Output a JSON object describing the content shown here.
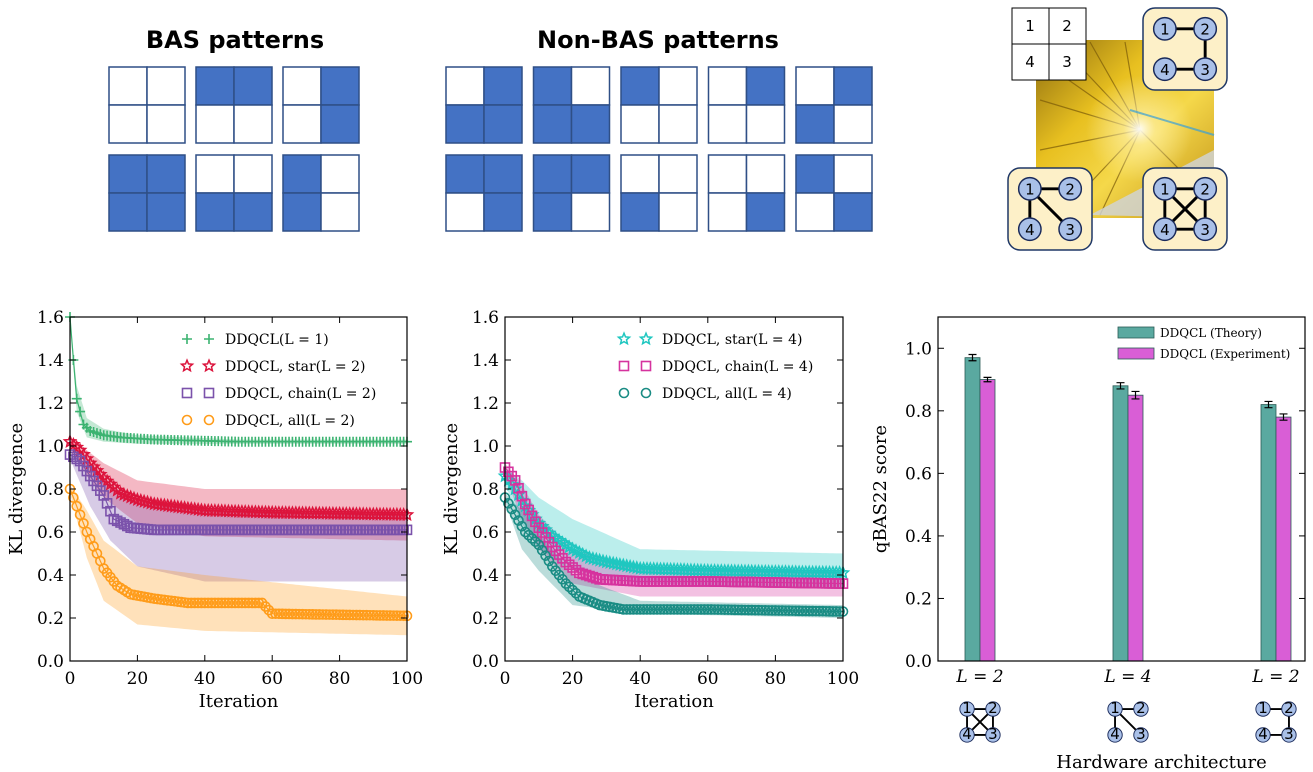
{
  "top": {
    "bas_title": "BAS patterns",
    "nonbas_title": "Non-BAS patterns",
    "bas_patterns": [
      [
        0,
        0,
        0,
        0
      ],
      [
        1,
        1,
        0,
        0
      ],
      [
        0,
        1,
        0,
        1
      ],
      [
        1,
        1,
        1,
        1
      ],
      [
        0,
        0,
        1,
        1
      ],
      [
        1,
        0,
        1,
        0
      ]
    ],
    "nonbas_patterns": [
      [
        0,
        1,
        1,
        1
      ],
      [
        1,
        0,
        1,
        1
      ],
      [
        1,
        0,
        0,
        0
      ],
      [
        0,
        1,
        0,
        0
      ],
      [
        0,
        1,
        1,
        0
      ],
      [
        1,
        1,
        0,
        1
      ],
      [
        1,
        1,
        1,
        0
      ],
      [
        0,
        0,
        1,
        0
      ],
      [
        0,
        0,
        0,
        1
      ],
      [
        1,
        0,
        0,
        1
      ]
    ],
    "qubit_grid": [
      "1",
      "2",
      "4",
      "3"
    ],
    "node_labels": [
      "1",
      "2",
      "3",
      "4"
    ]
  },
  "colors": {
    "cell_on": "#4472c4",
    "cell_border": "#2f4f86",
    "green": "#3cb371",
    "red": "#dc143c",
    "purple": "#7b52ab",
    "orange": "#ff9c1a",
    "cyan": "#1fc7c0",
    "magenta": "#d6339e",
    "teal": "#1a8c84",
    "bar_theory": "#5aa9a0",
    "bar_experiment": "#d95ed6",
    "node_fill": "#a9c0e8",
    "panel_fill": "#fdf0c8"
  },
  "chart_data": [
    {
      "type": "line",
      "xlabel": "Iteration",
      "ylabel": "KL divergence",
      "xlim": [
        0,
        100
      ],
      "ylim": [
        0.0,
        1.6
      ],
      "xticks": [
        "0",
        "20",
        "40",
        "60",
        "80",
        "100"
      ],
      "yticks": [
        "0.0",
        "0.2",
        "0.4",
        "0.6",
        "0.8",
        "1.0",
        "1.2",
        "1.4",
        "1.6"
      ],
      "legend_position": "top-right",
      "series": [
        {
          "name": "DDQCL(L = 1)",
          "marker": "plus",
          "color": "green",
          "points": [
            [
              0,
              1.6
            ],
            [
              1,
              1.4
            ],
            [
              2,
              1.22
            ],
            [
              4,
              1.1
            ],
            [
              6,
              1.07
            ],
            [
              10,
              1.05
            ],
            [
              15,
              1.04
            ],
            [
              25,
              1.03
            ],
            [
              50,
              1.02
            ],
            [
              100,
              1.02
            ]
          ],
          "band": [
            [
              0,
              1.6,
              1.6
            ],
            [
              2,
              1.28,
              1.16
            ],
            [
              5,
              1.13,
              1.04
            ],
            [
              10,
              1.08,
              1.02
            ],
            [
              20,
              1.05,
              1.01
            ],
            [
              50,
              1.03,
              1.01
            ],
            [
              100,
              1.03,
              1.01
            ]
          ]
        },
        {
          "name": "DDQCL, star(L = 2)",
          "marker": "star",
          "color": "red",
          "points": [
            [
              0,
              1.02
            ],
            [
              3,
              0.98
            ],
            [
              6,
              0.92
            ],
            [
              10,
              0.85
            ],
            [
              15,
              0.78
            ],
            [
              20,
              0.75
            ],
            [
              25,
              0.73
            ],
            [
              30,
              0.72
            ],
            [
              40,
              0.7
            ],
            [
              60,
              0.69
            ],
            [
              100,
              0.68
            ]
          ],
          "band": [
            [
              0,
              1.04,
              1.0
            ],
            [
              5,
              0.98,
              0.86
            ],
            [
              10,
              0.92,
              0.76
            ],
            [
              20,
              0.84,
              0.64
            ],
            [
              40,
              0.8,
              0.58
            ],
            [
              100,
              0.8,
              0.56
            ]
          ]
        },
        {
          "name": "DDQCL, chain(L = 2)",
          "marker": "square",
          "color": "purple",
          "points": [
            [
              0,
              0.96
            ],
            [
              3,
              0.93
            ],
            [
              6,
              0.86
            ],
            [
              10,
              0.77
            ],
            [
              13,
              0.66
            ],
            [
              18,
              0.62
            ],
            [
              25,
              0.61
            ],
            [
              40,
              0.61
            ],
            [
              60,
              0.61
            ],
            [
              100,
              0.61
            ]
          ],
          "band": [
            [
              0,
              0.98,
              0.94
            ],
            [
              6,
              0.9,
              0.72
            ],
            [
              12,
              0.82,
              0.56
            ],
            [
              20,
              0.74,
              0.44
            ],
            [
              40,
              0.7,
              0.37
            ],
            [
              100,
              0.68,
              0.37
            ]
          ]
        },
        {
          "name": "DDQCL, all(L = 2)",
          "marker": "circle",
          "color": "orange",
          "points": [
            [
              0,
              0.8
            ],
            [
              2,
              0.72
            ],
            [
              5,
              0.6
            ],
            [
              8,
              0.5
            ],
            [
              10,
              0.43
            ],
            [
              14,
              0.35
            ],
            [
              18,
              0.31
            ],
            [
              25,
              0.29
            ],
            [
              35,
              0.27
            ],
            [
              57,
              0.27
            ],
            [
              60,
              0.22
            ],
            [
              100,
              0.21
            ]
          ],
          "band": [
            [
              0,
              0.82,
              0.78
            ],
            [
              5,
              0.7,
              0.48
            ],
            [
              10,
              0.56,
              0.28
            ],
            [
              20,
              0.44,
              0.17
            ],
            [
              40,
              0.4,
              0.14
            ],
            [
              100,
              0.3,
              0.12
            ]
          ]
        }
      ]
    },
    {
      "type": "line",
      "xlabel": "Iteration",
      "ylabel": "KL divergence",
      "xlim": [
        0,
        100
      ],
      "ylim": [
        0.0,
        1.6
      ],
      "xticks": [
        "0",
        "20",
        "40",
        "60",
        "80",
        "100"
      ],
      "yticks": [
        "0.0",
        "0.2",
        "0.4",
        "0.6",
        "0.8",
        "1.0",
        "1.2",
        "1.4",
        "1.6"
      ],
      "legend_position": "top-right",
      "series": [
        {
          "name": "DDQCL, star(L = 4)",
          "marker": "star",
          "color": "cyan",
          "points": [
            [
              0,
              0.86
            ],
            [
              3,
              0.8
            ],
            [
              6,
              0.72
            ],
            [
              10,
              0.64
            ],
            [
              14,
              0.58
            ],
            [
              20,
              0.52
            ],
            [
              25,
              0.48
            ],
            [
              30,
              0.46
            ],
            [
              40,
              0.43
            ],
            [
              60,
              0.42
            ],
            [
              100,
              0.41
            ]
          ],
          "band": [
            [
              0,
              0.9,
              0.82
            ],
            [
              5,
              0.84,
              0.64
            ],
            [
              10,
              0.76,
              0.52
            ],
            [
              20,
              0.66,
              0.42
            ],
            [
              40,
              0.52,
              0.36
            ],
            [
              100,
              0.5,
              0.34
            ]
          ]
        },
        {
          "name": "DDQCL, chain(L = 4)",
          "marker": "square",
          "color": "magenta",
          "points": [
            [
              0,
              0.9
            ],
            [
              3,
              0.84
            ],
            [
              6,
              0.73
            ],
            [
              10,
              0.62
            ],
            [
              14,
              0.53
            ],
            [
              18,
              0.46
            ],
            [
              22,
              0.41
            ],
            [
              28,
              0.38
            ],
            [
              40,
              0.37
            ],
            [
              60,
              0.37
            ],
            [
              100,
              0.36
            ]
          ],
          "band": [
            [
              0,
              0.92,
              0.86
            ],
            [
              5,
              0.82,
              0.66
            ],
            [
              10,
              0.68,
              0.52
            ],
            [
              20,
              0.52,
              0.36
            ],
            [
              40,
              0.44,
              0.3
            ],
            [
              100,
              0.42,
              0.3
            ]
          ]
        },
        {
          "name": "DDQCL, all(L = 4)",
          "marker": "circle",
          "color": "teal",
          "points": [
            [
              0,
              0.76
            ],
            [
              3,
              0.68
            ],
            [
              6,
              0.6
            ],
            [
              10,
              0.54
            ],
            [
              14,
              0.44
            ],
            [
              18,
              0.36
            ],
            [
              22,
              0.3
            ],
            [
              28,
              0.26
            ],
            [
              35,
              0.24
            ],
            [
              60,
              0.24
            ],
            [
              100,
              0.23
            ]
          ],
          "band": [
            [
              0,
              0.78,
              0.74
            ],
            [
              5,
              0.7,
              0.52
            ],
            [
              10,
              0.6,
              0.42
            ],
            [
              20,
              0.4,
              0.26
            ],
            [
              40,
              0.28,
              0.22
            ],
            [
              100,
              0.26,
              0.2
            ]
          ]
        }
      ]
    },
    {
      "type": "bar",
      "xlabel": "Hardware architecture",
      "ylabel": "qBAS22 score",
      "ylim": [
        0.0,
        1.1
      ],
      "yticks": [
        "0.0",
        "0.2",
        "0.4",
        "0.6",
        "0.8",
        "1.0"
      ],
      "categories": [
        "L = 2",
        "L = 4",
        "L = 2"
      ],
      "category_topologies": [
        "all",
        "star",
        "chain"
      ],
      "legend_position": "top-right",
      "series": [
        {
          "name": "DDQCL (Theory)",
          "color": "bar_theory",
          "values": [
            0.97,
            0.88,
            0.82
          ],
          "errors": [
            0.01,
            0.01,
            0.01
          ]
        },
        {
          "name": "DDQCL (Experiment)",
          "color": "bar_experiment",
          "values": [
            0.9,
            0.85,
            0.78
          ],
          "errors": [
            0.007,
            0.012,
            0.01
          ]
        }
      ]
    }
  ]
}
